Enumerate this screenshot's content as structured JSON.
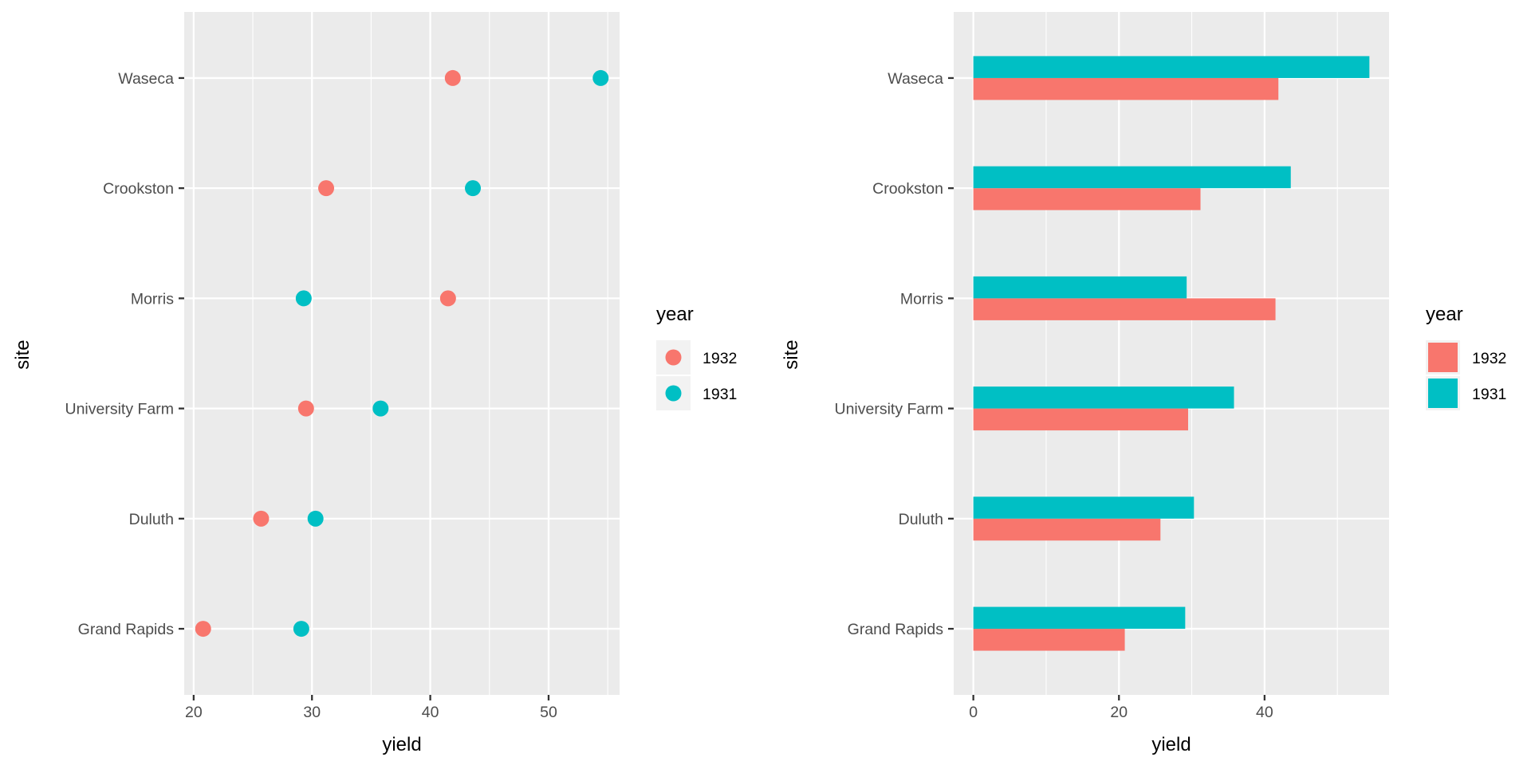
{
  "chart_data": [
    {
      "type": "scatter",
      "xlabel": "yield",
      "ylabel": "site",
      "categories": [
        "Grand Rapids",
        "Duluth",
        "University Farm",
        "Morris",
        "Crookston",
        "Waseca"
      ],
      "xlim": [
        19.2,
        56.0
      ],
      "xticks": [
        20,
        30,
        40,
        50
      ],
      "grid": true,
      "legend": {
        "title": "year",
        "placement": "right"
      },
      "series": [
        {
          "name": "1932",
          "color": "#F8766D",
          "values": [
            20.8,
            25.7,
            29.5,
            41.5,
            31.2,
            41.9
          ]
        },
        {
          "name": "1931",
          "color": "#00BFC4",
          "values": [
            29.1,
            30.3,
            35.8,
            29.3,
            43.6,
            54.4
          ]
        }
      ]
    },
    {
      "type": "bar",
      "orientation": "horizontal",
      "xlabel": "yield",
      "ylabel": "site",
      "categories": [
        "Grand Rapids",
        "Duluth",
        "University Farm",
        "Morris",
        "Crookston",
        "Waseca"
      ],
      "xlim": [
        -2.7,
        57.1
      ],
      "xticks": [
        0,
        20,
        40
      ],
      "grid": true,
      "legend": {
        "title": "year",
        "placement": "right"
      },
      "series": [
        {
          "name": "1932",
          "color": "#F8766D",
          "values": [
            20.8,
            25.7,
            29.5,
            41.5,
            31.2,
            41.9
          ]
        },
        {
          "name": "1931",
          "color": "#00BFC4",
          "values": [
            29.1,
            30.3,
            35.8,
            29.3,
            43.6,
            54.4
          ]
        }
      ]
    }
  ]
}
